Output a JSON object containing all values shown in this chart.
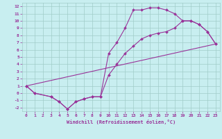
{
  "background_color": "#c8eef0",
  "grid_color": "#a0ccc8",
  "line_color": "#993399",
  "xlim": [
    -0.5,
    23.5
  ],
  "ylim": [
    -2.5,
    12.5
  ],
  "xticks": [
    0,
    1,
    2,
    3,
    4,
    5,
    6,
    7,
    8,
    9,
    10,
    11,
    12,
    13,
    14,
    15,
    16,
    17,
    18,
    19,
    20,
    21,
    22,
    23
  ],
  "yticks": [
    -2,
    -1,
    0,
    1,
    2,
    3,
    4,
    5,
    6,
    7,
    8,
    9,
    10,
    11,
    12
  ],
  "xlabel": "Windchill (Refroidissement éolien,°C)",
  "series": [
    {
      "x": [
        0,
        1,
        3,
        4,
        5,
        6,
        7,
        8,
        9,
        10,
        11,
        12,
        13,
        14,
        15,
        16,
        17,
        18,
        19,
        20,
        21,
        22,
        23
      ],
      "y": [
        1.0,
        0.0,
        -0.5,
        -1.2,
        -2.2,
        -1.2,
        -0.8,
        -0.5,
        -0.5,
        5.5,
        7.0,
        9.0,
        11.5,
        11.5,
        11.8,
        11.8,
        11.5,
        11.0,
        10.0,
        10.0,
        9.5,
        8.5,
        6.8
      ],
      "marker": true
    },
    {
      "x": [
        0,
        1,
        3,
        4,
        5,
        6,
        7,
        8,
        9,
        10,
        11,
        12,
        13,
        14,
        15,
        16,
        17,
        18,
        19,
        20,
        21,
        22,
        23
      ],
      "y": [
        1.0,
        0.0,
        -0.5,
        -1.2,
        -2.2,
        -1.2,
        -0.8,
        -0.5,
        -0.5,
        2.5,
        4.0,
        5.5,
        6.5,
        7.5,
        8.0,
        8.3,
        8.5,
        9.0,
        10.0,
        10.0,
        9.5,
        8.5,
        6.8
      ],
      "marker": true
    },
    {
      "x": [
        0,
        23
      ],
      "y": [
        1.0,
        6.8
      ],
      "marker": false
    }
  ]
}
